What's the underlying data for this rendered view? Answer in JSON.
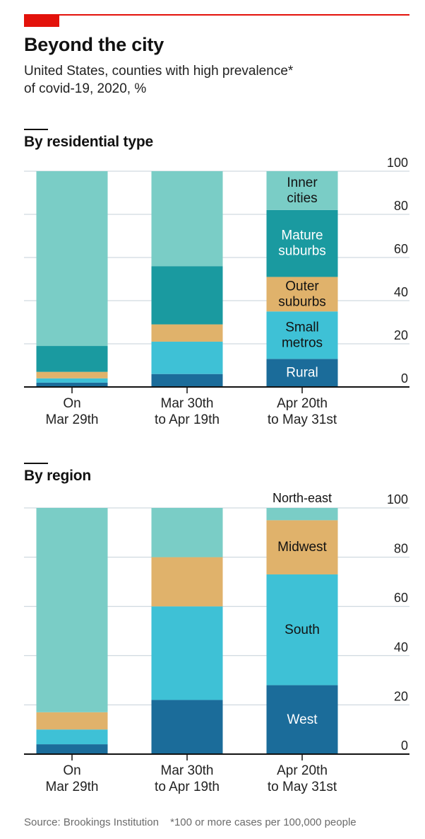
{
  "header": {
    "title": "Beyond the city",
    "subtitle_line1": "United States, counties with high prevalence*",
    "subtitle_line2": "of covid-19, 2020, %"
  },
  "footer": {
    "source": "Source: Brookings Institution",
    "note": "*100 or more cases per 100,000 people"
  },
  "colors": {
    "accent_red": "#e3120b",
    "dark_blue": "#1b6c9a",
    "cyan": "#3ec1d6",
    "gold": "#e0b26b",
    "teal": "#1a9aa0",
    "light_teal": "#7acdc6"
  },
  "chart_data": [
    {
      "type": "bar",
      "stacked": true,
      "title": "By residential type",
      "categories": [
        "On\nMar 29th",
        "Mar 30th\nto Apr 19th",
        "Apr 20th\nto May 31st"
      ],
      "ylim": [
        0,
        100
      ],
      "yticks": [
        0,
        20,
        40,
        60,
        80,
        100
      ],
      "grid": true,
      "label_column": 2,
      "series": [
        {
          "name": "Rural",
          "label": "Rural",
          "color": "#1b6c9a",
          "label_color": "#ffffff",
          "values": [
            2,
            6,
            13
          ]
        },
        {
          "name": "Small metros",
          "label": "Small\nmetros",
          "color": "#3ec1d6",
          "label_color": "#121212",
          "values": [
            2,
            15,
            22
          ]
        },
        {
          "name": "Outer suburbs",
          "label": "Outer\nsuburbs",
          "color": "#e0b26b",
          "label_color": "#121212",
          "values": [
            3,
            8,
            16
          ]
        },
        {
          "name": "Mature suburbs",
          "label": "Mature\nsuburbs",
          "color": "#1a9aa0",
          "label_color": "#ffffff",
          "values": [
            12,
            27,
            31
          ]
        },
        {
          "name": "Inner cities",
          "label": "Inner\ncities",
          "color": "#7acdc6",
          "label_color": "#121212",
          "values": [
            81,
            44,
            18
          ]
        }
      ]
    },
    {
      "type": "bar",
      "stacked": true,
      "title": "By region",
      "categories": [
        "On\nMar 29th",
        "Mar 30th\nto Apr 19th",
        "Apr 20th\nto May 31st"
      ],
      "ylim": [
        0,
        100
      ],
      "yticks": [
        0,
        20,
        40,
        60,
        80,
        100
      ],
      "grid": true,
      "label_column": 2,
      "series": [
        {
          "name": "West",
          "label": "West",
          "color": "#1b6c9a",
          "label_color": "#ffffff",
          "values": [
            4,
            22,
            28
          ]
        },
        {
          "name": "South",
          "label": "South",
          "color": "#3ec1d6",
          "label_color": "#121212",
          "values": [
            6,
            38,
            45
          ]
        },
        {
          "name": "Midwest",
          "label": "Midwest",
          "color": "#e0b26b",
          "label_color": "#121212",
          "values": [
            7,
            20,
            22
          ]
        },
        {
          "name": "North-east",
          "label": "North-east",
          "color": "#7acdc6",
          "label_color": "#121212",
          "label_above": true,
          "values": [
            83,
            20,
            5
          ]
        }
      ]
    }
  ]
}
